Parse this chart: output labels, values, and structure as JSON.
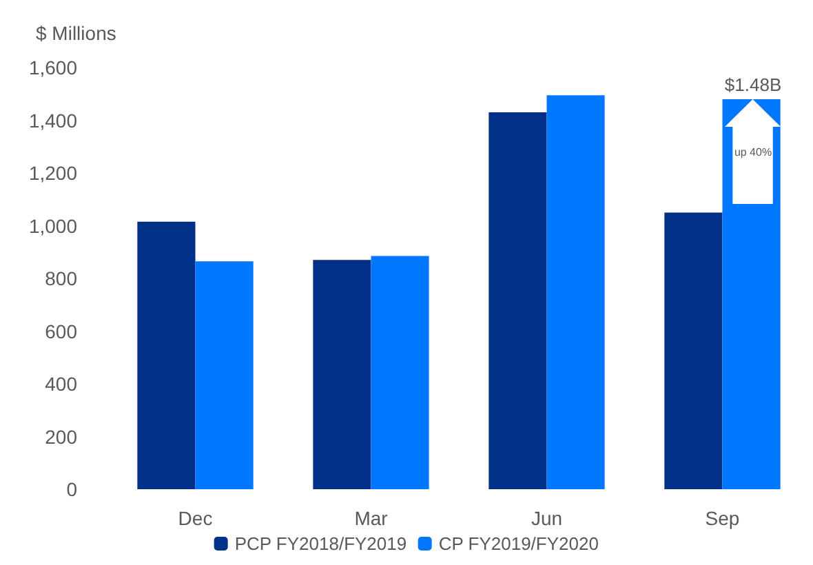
{
  "chart_data": {
    "type": "bar",
    "ylabel": "$ Millions",
    "categories": [
      "Dec",
      "Mar",
      "Jun",
      "Sep"
    ],
    "series": [
      {
        "name": "PCP FY2018/FY2019",
        "color": "#003087",
        "values": [
          1015,
          870,
          1430,
          1050
        ]
      },
      {
        "name": "CP FY2019/FY2020",
        "color": "#0077ff",
        "values": [
          865,
          885,
          1495,
          1480
        ]
      }
    ],
    "ylim": [
      0,
      1600
    ],
    "yticks": [
      0,
      200,
      400,
      600,
      800,
      {
        "value": 1000,
        "label": "1,000"
      },
      {
        "value": 1200,
        "label": "1,200"
      },
      {
        "value": 1400,
        "label": "1,400"
      },
      {
        "value": 1600,
        "label": "1,600"
      }
    ],
    "grid": false,
    "legend": "bottom",
    "annotations": [
      {
        "text": "$1.48B",
        "x": "Sep",
        "y": 1480
      },
      "up 40%"
    ]
  }
}
